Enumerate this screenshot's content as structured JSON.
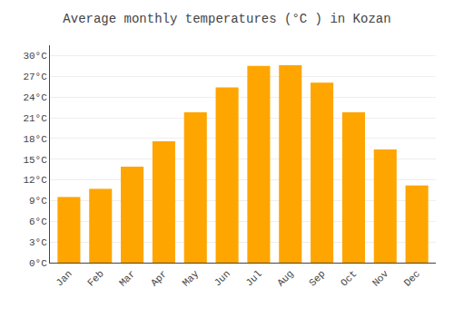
{
  "chart_data": {
    "type": "bar",
    "title": "Average monthly temperatures (°C ) in Kozan",
    "categories": [
      "Jan",
      "Feb",
      "Mar",
      "Apr",
      "May",
      "Jun",
      "Jul",
      "Aug",
      "Sep",
      "Oct",
      "Nov",
      "Dec"
    ],
    "values": [
      9.5,
      10.7,
      13.9,
      17.6,
      21.8,
      25.4,
      28.5,
      28.6,
      26.1,
      21.8,
      16.4,
      11.2
    ],
    "color": "#FFA500",
    "ylim": [
      0,
      31.5
    ],
    "yticks": [
      {
        "value": 0,
        "label": "0°C"
      },
      {
        "value": 3,
        "label": "3°C"
      },
      {
        "value": 6,
        "label": "6°C"
      },
      {
        "value": 9,
        "label": "9°C"
      },
      {
        "value": 12,
        "label": "12°C"
      },
      {
        "value": 15,
        "label": "15°C"
      },
      {
        "value": 18,
        "label": "18°C"
      },
      {
        "value": 21,
        "label": "21°C"
      },
      {
        "value": 24,
        "label": "24°C"
      },
      {
        "value": 27,
        "label": "27°C"
      },
      {
        "value": 30,
        "label": "30°C"
      }
    ],
    "grid": true
  }
}
